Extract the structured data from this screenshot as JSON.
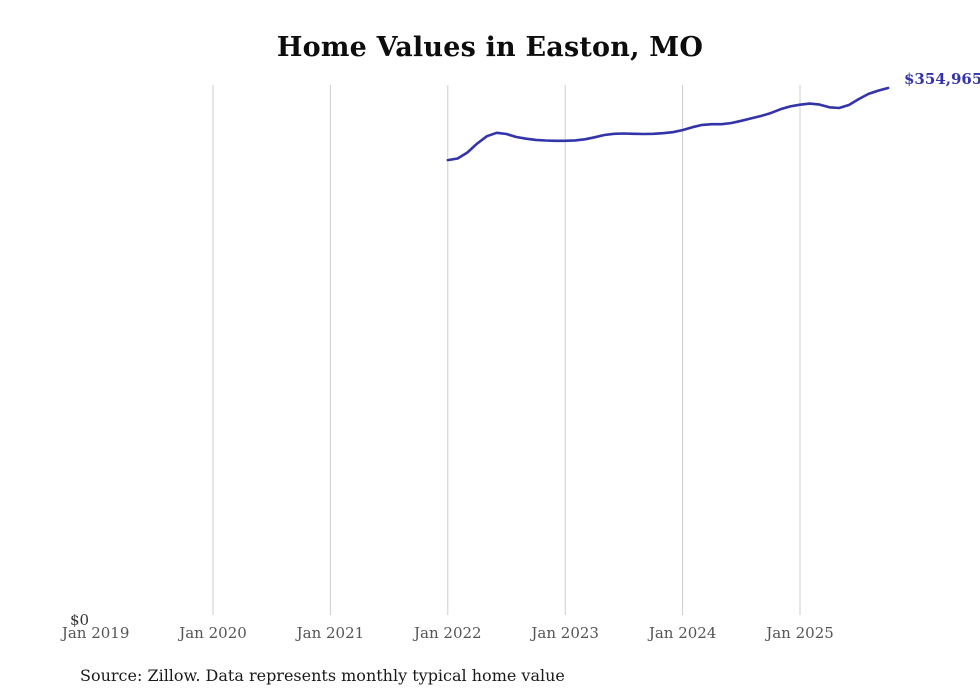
{
  "chart_data": {
    "type": "line",
    "title": "Home Values in Easton, MO",
    "x": [
      "2022-01",
      "2022-02",
      "2022-03",
      "2022-04",
      "2022-05",
      "2022-06",
      "2022-07",
      "2022-08",
      "2022-09",
      "2022-10",
      "2022-11",
      "2022-12",
      "2023-01",
      "2023-02",
      "2023-03",
      "2023-04",
      "2023-05",
      "2023-06",
      "2023-07",
      "2023-08",
      "2023-09",
      "2023-10",
      "2023-11",
      "2023-12",
      "2024-01",
      "2024-02",
      "2024-03",
      "2024-04",
      "2024-05",
      "2024-06",
      "2024-07",
      "2024-08",
      "2024-09",
      "2024-10",
      "2024-11",
      "2024-12",
      "2025-01",
      "2025-02",
      "2025-03",
      "2025-04",
      "2025-05",
      "2025-06",
      "2025-07",
      "2025-08",
      "2025-09",
      "2025-10"
    ],
    "values": [
      306400,
      307500,
      311500,
      317500,
      322500,
      324800,
      324000,
      322000,
      320800,
      320000,
      319600,
      319400,
      319400,
      319700,
      320400,
      321800,
      323300,
      324100,
      324300,
      324100,
      324000,
      324100,
      324500,
      325200,
      326600,
      328600,
      330100,
      330600,
      330600,
      331400,
      332900,
      334500,
      336100,
      338100,
      340600,
      342600,
      343700,
      344500,
      343800,
      342000,
      341500,
      343500,
      347500,
      351000,
      353200,
      354965
    ],
    "x_tick_labels": [
      "Jan 2019",
      "Jan 2020",
      "Jan 2021",
      "Jan 2022",
      "Jan 2023",
      "Jan 2024",
      "Jan 2025"
    ],
    "y_zero_label": "$0",
    "end_label": "$354,965",
    "ylim": [
      0,
      357000
    ],
    "xlabel": "",
    "ylabel": "",
    "grid": "vertical-year-gridlines",
    "legend": "none",
    "line_color": "#3333aa",
    "gridline_color": "#cccccc"
  },
  "source_note": "Source: Zillow. Data represents monthly typical home value"
}
